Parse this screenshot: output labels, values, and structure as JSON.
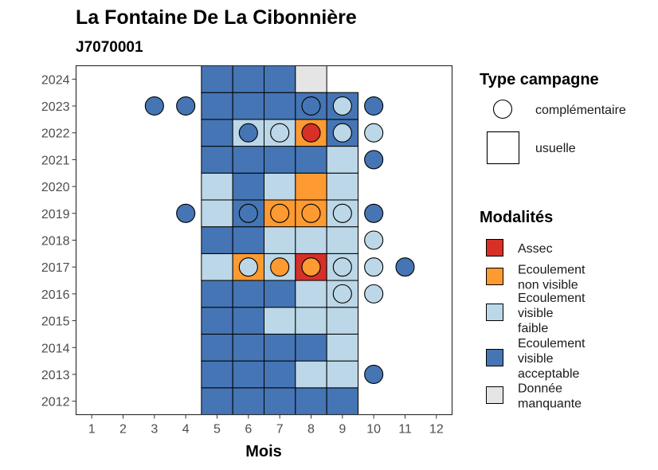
{
  "chart_data": {
    "type": "heatmap",
    "title": "La Fontaine De La Cibonnière",
    "subtitle": "J7070001",
    "xlabel": "Mois",
    "ylabel": "",
    "x_ticks": [
      1,
      2,
      3,
      4,
      5,
      6,
      7,
      8,
      9,
      10,
      11,
      12
    ],
    "y_ticks": [
      2012,
      2013,
      2014,
      2015,
      2016,
      2017,
      2018,
      2019,
      2020,
      2021,
      2022,
      2023,
      2024
    ],
    "xlim": [
      0.5,
      12.5
    ],
    "ylim": [
      2011.5,
      2024.5
    ],
    "colors": {
      "assec": "#d73027",
      "ecoulement_non_visible": "#fd9a32",
      "ecoulement_visible_faible": "#bcd7e7",
      "ecoulement_visible_acceptable": "#4575b4",
      "donnee_manquante": "#e5e5e5"
    },
    "legend_type": {
      "title": "Type campagne",
      "items": [
        {
          "shape": "circle",
          "label": "complémentaire"
        },
        {
          "shape": "square",
          "label": "usuelle"
        }
      ]
    },
    "legend_modalites": {
      "title": "Modalités",
      "items": [
        {
          "key": "assec",
          "lines": [
            "Assec"
          ]
        },
        {
          "key": "ecoulement_non_visible",
          "lines": [
            "Ecoulement",
            "non visible"
          ]
        },
        {
          "key": "ecoulement_visible_faible",
          "lines": [
            "Ecoulement",
            "visible",
            "faible"
          ]
        },
        {
          "key": "ecoulement_visible_acceptable",
          "lines": [
            "Ecoulement",
            "visible",
            "acceptable"
          ]
        },
        {
          "key": "donnee_manquante",
          "lines": [
            "Donnée",
            "manquante"
          ]
        }
      ]
    },
    "usuelle": [
      {
        "year": 2012,
        "month": 5,
        "m": "ecoulement_visible_acceptable"
      },
      {
        "year": 2012,
        "month": 6,
        "m": "ecoulement_visible_acceptable"
      },
      {
        "year": 2012,
        "month": 7,
        "m": "ecoulement_visible_acceptable"
      },
      {
        "year": 2012,
        "month": 8,
        "m": "ecoulement_visible_acceptable"
      },
      {
        "year": 2012,
        "month": 9,
        "m": "ecoulement_visible_acceptable"
      },
      {
        "year": 2013,
        "month": 5,
        "m": "ecoulement_visible_acceptable"
      },
      {
        "year": 2013,
        "month": 6,
        "m": "ecoulement_visible_acceptable"
      },
      {
        "year": 2013,
        "month": 7,
        "m": "ecoulement_visible_acceptable"
      },
      {
        "year": 2013,
        "month": 8,
        "m": "ecoulement_visible_faible"
      },
      {
        "year": 2013,
        "month": 9,
        "m": "ecoulement_visible_faible"
      },
      {
        "year": 2014,
        "month": 5,
        "m": "ecoulement_visible_acceptable"
      },
      {
        "year": 2014,
        "month": 6,
        "m": "ecoulement_visible_acceptable"
      },
      {
        "year": 2014,
        "month": 7,
        "m": "ecoulement_visible_acceptable"
      },
      {
        "year": 2014,
        "month": 8,
        "m": "ecoulement_visible_acceptable"
      },
      {
        "year": 2014,
        "month": 9,
        "m": "ecoulement_visible_faible"
      },
      {
        "year": 2015,
        "month": 5,
        "m": "ecoulement_visible_acceptable"
      },
      {
        "year": 2015,
        "month": 6,
        "m": "ecoulement_visible_acceptable"
      },
      {
        "year": 2015,
        "month": 7,
        "m": "ecoulement_visible_faible"
      },
      {
        "year": 2015,
        "month": 8,
        "m": "ecoulement_visible_faible"
      },
      {
        "year": 2015,
        "month": 9,
        "m": "ecoulement_visible_faible"
      },
      {
        "year": 2016,
        "month": 5,
        "m": "ecoulement_visible_acceptable"
      },
      {
        "year": 2016,
        "month": 6,
        "m": "ecoulement_visible_acceptable"
      },
      {
        "year": 2016,
        "month": 7,
        "m": "ecoulement_visible_acceptable"
      },
      {
        "year": 2016,
        "month": 8,
        "m": "ecoulement_visible_faible"
      },
      {
        "year": 2016,
        "month": 9,
        "m": "ecoulement_visible_faible"
      },
      {
        "year": 2017,
        "month": 5,
        "m": "ecoulement_visible_faible"
      },
      {
        "year": 2017,
        "month": 6,
        "m": "ecoulement_non_visible"
      },
      {
        "year": 2017,
        "month": 7,
        "m": "ecoulement_visible_faible"
      },
      {
        "year": 2017,
        "month": 8,
        "m": "assec"
      },
      {
        "year": 2017,
        "month": 9,
        "m": "ecoulement_visible_faible"
      },
      {
        "year": 2018,
        "month": 5,
        "m": "ecoulement_visible_acceptable"
      },
      {
        "year": 2018,
        "month": 6,
        "m": "ecoulement_visible_acceptable"
      },
      {
        "year": 2018,
        "month": 7,
        "m": "ecoulement_visible_faible"
      },
      {
        "year": 2018,
        "month": 8,
        "m": "ecoulement_visible_faible"
      },
      {
        "year": 2018,
        "month": 9,
        "m": "ecoulement_visible_faible"
      },
      {
        "year": 2019,
        "month": 5,
        "m": "ecoulement_visible_faible"
      },
      {
        "year": 2019,
        "month": 6,
        "m": "ecoulement_visible_acceptable"
      },
      {
        "year": 2019,
        "month": 7,
        "m": "ecoulement_non_visible"
      },
      {
        "year": 2019,
        "month": 8,
        "m": "ecoulement_non_visible"
      },
      {
        "year": 2019,
        "month": 9,
        "m": "ecoulement_visible_faible"
      },
      {
        "year": 2020,
        "month": 5,
        "m": "ecoulement_visible_faible"
      },
      {
        "year": 2020,
        "month": 6,
        "m": "ecoulement_visible_acceptable"
      },
      {
        "year": 2020,
        "month": 7,
        "m": "ecoulement_visible_faible"
      },
      {
        "year": 2020,
        "month": 8,
        "m": "ecoulement_non_visible"
      },
      {
        "year": 2020,
        "month": 9,
        "m": "ecoulement_visible_faible"
      },
      {
        "year": 2021,
        "month": 5,
        "m": "ecoulement_visible_acceptable"
      },
      {
        "year": 2021,
        "month": 6,
        "m": "ecoulement_visible_acceptable"
      },
      {
        "year": 2021,
        "month": 7,
        "m": "ecoulement_visible_acceptable"
      },
      {
        "year": 2021,
        "month": 8,
        "m": "ecoulement_visible_acceptable"
      },
      {
        "year": 2021,
        "month": 9,
        "m": "ecoulement_visible_faible"
      },
      {
        "year": 2022,
        "month": 5,
        "m": "ecoulement_visible_acceptable"
      },
      {
        "year": 2022,
        "month": 6,
        "m": "ecoulement_visible_faible"
      },
      {
        "year": 2022,
        "month": 7,
        "m": "ecoulement_visible_faible"
      },
      {
        "year": 2022,
        "month": 8,
        "m": "ecoulement_non_visible"
      },
      {
        "year": 2022,
        "month": 9,
        "m": "ecoulement_visible_acceptable"
      },
      {
        "year": 2023,
        "month": 5,
        "m": "ecoulement_visible_acceptable"
      },
      {
        "year": 2023,
        "month": 6,
        "m": "ecoulement_visible_acceptable"
      },
      {
        "year": 2023,
        "month": 7,
        "m": "ecoulement_visible_acceptable"
      },
      {
        "year": 2023,
        "month": 8,
        "m": "ecoulement_visible_acceptable"
      },
      {
        "year": 2023,
        "month": 9,
        "m": "ecoulement_visible_acceptable"
      },
      {
        "year": 2024,
        "month": 5,
        "m": "ecoulement_visible_acceptable"
      },
      {
        "year": 2024,
        "month": 6,
        "m": "ecoulement_visible_acceptable"
      },
      {
        "year": 2024,
        "month": 7,
        "m": "ecoulement_visible_acceptable"
      },
      {
        "year": 2024,
        "month": 8,
        "m": "donnee_manquante"
      }
    ],
    "complementaire": [
      {
        "year": 2013,
        "month": 10,
        "m": "ecoulement_visible_acceptable"
      },
      {
        "year": 2016,
        "month": 9,
        "m": "ecoulement_visible_faible"
      },
      {
        "year": 2016,
        "month": 10,
        "m": "ecoulement_visible_faible"
      },
      {
        "year": 2017,
        "month": 6,
        "m": "ecoulement_visible_faible"
      },
      {
        "year": 2017,
        "month": 7,
        "m": "ecoulement_non_visible"
      },
      {
        "year": 2017,
        "month": 8,
        "m": "ecoulement_non_visible"
      },
      {
        "year": 2017,
        "month": 9,
        "m": "ecoulement_visible_faible"
      },
      {
        "year": 2017,
        "month": 10,
        "m": "ecoulement_visible_faible"
      },
      {
        "year": 2017,
        "month": 11,
        "m": "ecoulement_visible_acceptable"
      },
      {
        "year": 2018,
        "month": 10,
        "m": "ecoulement_visible_faible"
      },
      {
        "year": 2019,
        "month": 4,
        "m": "ecoulement_visible_acceptable"
      },
      {
        "year": 2019,
        "month": 6,
        "m": "ecoulement_visible_acceptable"
      },
      {
        "year": 2019,
        "month": 7,
        "m": "ecoulement_non_visible"
      },
      {
        "year": 2019,
        "month": 8,
        "m": "ecoulement_non_visible"
      },
      {
        "year": 2019,
        "month": 9,
        "m": "ecoulement_visible_faible"
      },
      {
        "year": 2019,
        "month": 10,
        "m": "ecoulement_visible_acceptable"
      },
      {
        "year": 2021,
        "month": 10,
        "m": "ecoulement_visible_acceptable"
      },
      {
        "year": 2022,
        "month": 6,
        "m": "ecoulement_visible_acceptable"
      },
      {
        "year": 2022,
        "month": 7,
        "m": "ecoulement_visible_faible"
      },
      {
        "year": 2022,
        "month": 8,
        "m": "assec"
      },
      {
        "year": 2022,
        "month": 9,
        "m": "ecoulement_visible_faible"
      },
      {
        "year": 2022,
        "month": 10,
        "m": "ecoulement_visible_faible"
      },
      {
        "year": 2023,
        "month": 3,
        "m": "ecoulement_visible_acceptable"
      },
      {
        "year": 2023,
        "month": 4,
        "m": "ecoulement_visible_acceptable"
      },
      {
        "year": 2023,
        "month": 8,
        "m": "ecoulement_visible_acceptable"
      },
      {
        "year": 2023,
        "month": 9,
        "m": "ecoulement_visible_faible"
      },
      {
        "year": 2023,
        "month": 10,
        "m": "ecoulement_visible_acceptable"
      }
    ]
  }
}
